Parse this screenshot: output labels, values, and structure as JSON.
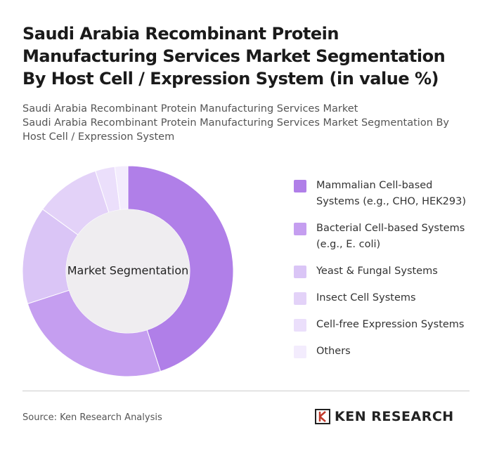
{
  "chart_data": {
    "type": "donut",
    "title": "Saudi Arabia Recombinant Protein Manufacturing Services Market Segmentation By Host Cell / Expression System (in value %)",
    "subtitle": [
      "Saudi Arabia Recombinant Protein Manufacturing Services Market",
      "Saudi Arabia Recombinant Protein Manufacturing Services Market Segmentation By Host Cell / Expression System"
    ],
    "center_label": "Market Segmentation",
    "categories": [
      "Mammalian Cell-based Systems (e.g., CHO, HEK293)",
      "Bacterial Cell-based Systems (e.g., E. coli)",
      "Yeast & Fungal Systems",
      "Insect Cell Systems",
      "Cell-free Expression Systems",
      "Others"
    ],
    "values": [
      45,
      25,
      15,
      10,
      3,
      2
    ],
    "colors": [
      "#b07fe8",
      "#c59ef0",
      "#dac5f6",
      "#e3d2f8",
      "#ebdffb",
      "#f3ecfd"
    ],
    "source": "Source: Ken Research Analysis",
    "logo": "KEN RESEARCH"
  }
}
